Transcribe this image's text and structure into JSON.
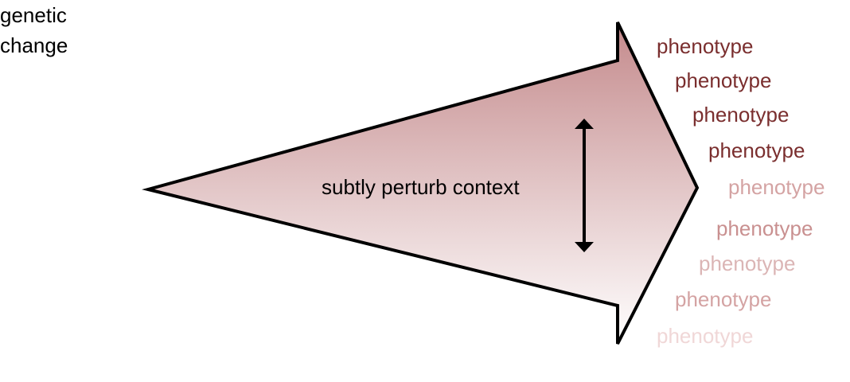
{
  "source_label": {
    "line1": "genetic",
    "line2": "change"
  },
  "center_label": "subtly perturb context",
  "phenotypes": [
    {
      "label": "phenotype",
      "color": "#7a2e2e"
    },
    {
      "label": "phenotype",
      "color": "#7a2e2e"
    },
    {
      "label": "phenotype",
      "color": "#7a2e2e"
    },
    {
      "label": "phenotype",
      "color": "#7a2e2e"
    },
    {
      "label": "phenotype",
      "color": "#d4a3a3"
    },
    {
      "label": "phenotype",
      "color": "#c99090"
    },
    {
      "label": "phenotype",
      "color": "#dbb5b5"
    },
    {
      "label": "phenotype",
      "color": "#d4a3a3"
    },
    {
      "label": "phenotype",
      "color": "#f0d7d7"
    }
  ],
  "colors": {
    "arrow_top": "#c48a8c",
    "arrow_bottom": "#ffffff",
    "outline": "#000000"
  }
}
